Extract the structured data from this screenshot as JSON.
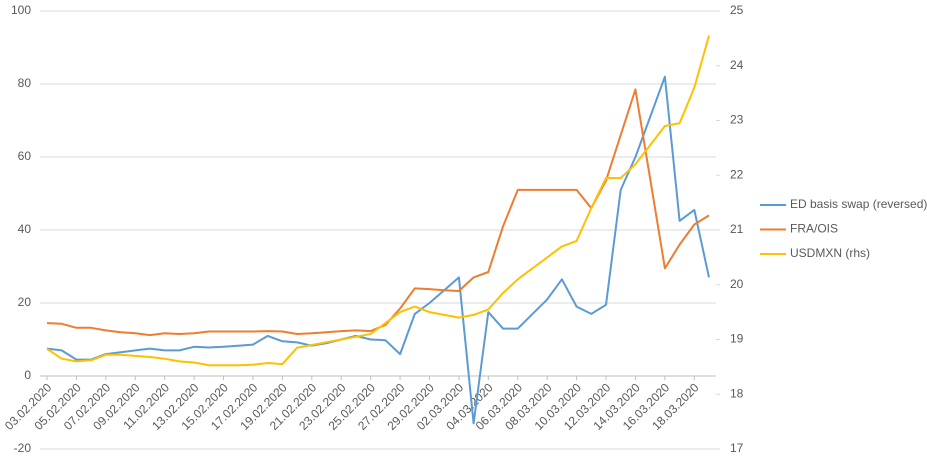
{
  "chart_data": {
    "type": "line",
    "categories": [
      "03.02.2020",
      null,
      "05.02.2020",
      null,
      "07.02.2020",
      null,
      "09.02.2020",
      null,
      "11.02.2020",
      null,
      "13.02.2020",
      null,
      "15.02.2020",
      null,
      "17.02.2020",
      null,
      "19.02.2020",
      null,
      "21.02.2020",
      null,
      "23.02.2020",
      null,
      "25.02.2020",
      null,
      "27.02.2020",
      null,
      "29.02.2020",
      null,
      "02.03.2020",
      null,
      "04.03.2020",
      null,
      "06.03.2020",
      null,
      "08.03.2020",
      null,
      "10.03.2020",
      null,
      "12.03.2020",
      null,
      "14.03.2020",
      null,
      "16.03.2020",
      null,
      "18.03.2020",
      null
    ],
    "series": [
      {
        "name": "ED basis swap (reversed)",
        "color": "#5b9bd5",
        "values": [
          7.5,
          7,
          4.5,
          4.5,
          6,
          6.5,
          7,
          7.5,
          7,
          7,
          8,
          7.8,
          8,
          8.3,
          8.6,
          11,
          9.5,
          9.2,
          8.3,
          9,
          10,
          11,
          10,
          9.8,
          6,
          17,
          20,
          23.5,
          27,
          -13,
          17.5,
          13,
          13,
          17,
          21,
          26.5,
          19,
          17,
          19.5,
          51,
          60,
          71,
          82,
          42.5,
          45.5,
          27
        ]
      },
      {
        "name": "FRA/OIS",
        "color": "#ed7d31",
        "values": [
          14.5,
          14.3,
          13.2,
          13.2,
          12.5,
          12,
          11.7,
          11.2,
          11.7,
          11.5,
          11.7,
          12.2,
          12.2,
          12.2,
          12.2,
          12.3,
          12.2,
          11.5,
          11.7,
          12,
          12.3,
          12.5,
          12.3,
          14,
          18.5,
          24,
          23.8,
          23.5,
          23.3,
          27,
          28.5,
          41,
          51,
          51,
          51,
          51,
          51,
          46,
          53.5,
          66,
          78.5,
          54,
          29.5,
          36,
          41.5,
          44
        ]
      },
      {
        "name": "USDMXN (rhs)",
        "color": "#ffc000",
        "axis": "y2",
        "values": [
          18.83,
          18.65,
          18.6,
          18.62,
          18.72,
          18.72,
          18.7,
          18.68,
          18.65,
          18.6,
          18.58,
          18.53,
          18.53,
          18.53,
          18.54,
          18.57,
          18.55,
          18.85,
          18.9,
          18.95,
          19.0,
          19.05,
          19.1,
          19.3,
          19.5,
          19.6,
          19.5,
          19.45,
          19.4,
          19.45,
          19.55,
          19.85,
          20.1,
          20.3,
          20.5,
          20.7,
          20.8,
          21.4,
          21.95,
          21.95,
          22.2,
          22.55,
          22.9,
          22.95,
          23.6,
          24.55
        ]
      }
    ],
    "ylim": [
      -20,
      100
    ],
    "yticks": [
      -20,
      0,
      20,
      40,
      60,
      80,
      100
    ],
    "y2lim": [
      17,
      25
    ],
    "y2ticks": [
      17,
      18,
      19,
      20,
      21,
      22,
      23,
      24,
      25
    ],
    "grid": true,
    "legend": "right"
  }
}
